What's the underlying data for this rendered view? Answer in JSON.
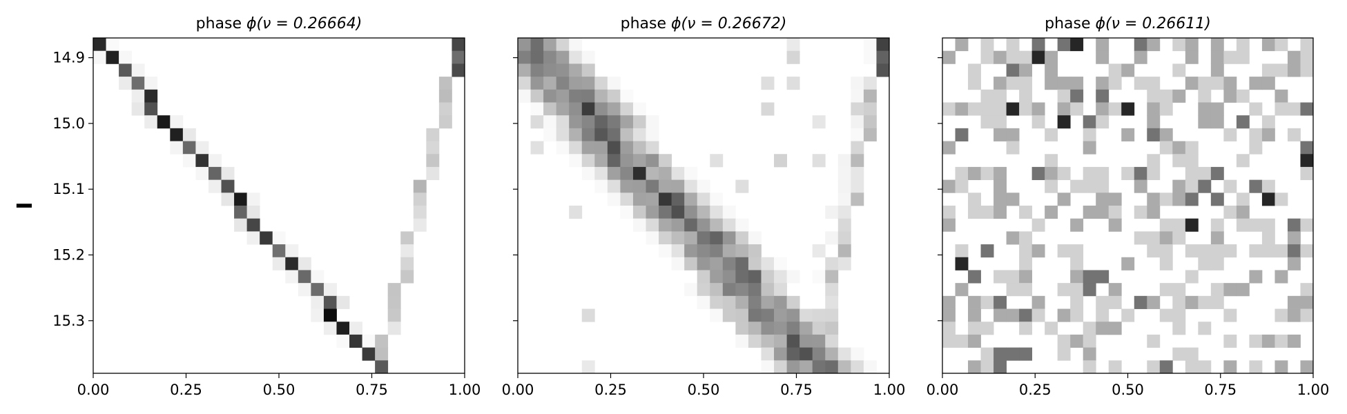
{
  "figure": {
    "ylabel": "I"
  },
  "chart_data": [
    {
      "type": "heatmap",
      "title_prefix": "phase ",
      "title_math": "ϕ(ν = 0.26664)",
      "colormap": "greys",
      "xlim": [
        0.0,
        1.0
      ],
      "ylim": [
        15.38,
        14.87
      ],
      "y_inverted": true,
      "x_ticks": [
        "0.00",
        "0.25",
        "0.50",
        "0.75",
        "1.00"
      ],
      "x_tick_values": [
        0.0,
        0.25,
        0.5,
        0.75,
        1.0
      ],
      "y_ticks": [
        "14.9",
        "15.0",
        "15.1",
        "15.2",
        "15.3"
      ],
      "y_tick_values": [
        14.9,
        15.0,
        15.1,
        15.2,
        15.3
      ],
      "show_y_tick_labels": true,
      "grid": false,
      "bins": {
        "nx": 29,
        "ny": 26,
        "x_range": [
          0.0,
          1.0
        ],
        "y_range": [
          14.87,
          15.38
        ],
        "shape": "v_band",
        "descending_x_start": 0.0,
        "descending_x_end": 0.8,
        "ascending_x_start": 0.8,
        "ascending_x_end": 1.0,
        "band_width": 1,
        "noise_density": 0.0,
        "intensity_sample": [
          [
            0,
            0,
            0.45
          ],
          [
            1,
            1,
            0.55
          ],
          [
            3,
            2,
            0.9
          ],
          [
            5,
            3,
            0.7
          ],
          [
            7,
            4,
            0.8
          ],
          [
            9,
            5,
            0.6
          ],
          [
            11,
            6,
            0.45
          ],
          [
            14,
            8,
            0.85
          ],
          [
            17,
            10,
            0.85
          ],
          [
            20,
            12,
            0.7
          ],
          [
            22,
            13,
            0.9
          ],
          [
            25,
            15,
            0.7
          ],
          [
            27,
            17,
            0.55
          ],
          [
            28,
            19,
            0.8
          ],
          [
            29,
            21,
            0.95
          ],
          [
            30,
            23,
            0.4
          ],
          [
            28,
            25,
            0.75
          ],
          [
            24,
            26,
            0.3
          ],
          [
            16,
            27,
            0.2
          ],
          [
            8,
            28,
            0.35
          ],
          [
            0,
            28,
            0.75
          ]
        ]
      }
    },
    {
      "type": "heatmap",
      "title_prefix": "phase ",
      "title_math": "ϕ(ν = 0.26672)",
      "colormap": "greys",
      "xlim": [
        0.0,
        1.0
      ],
      "ylim": [
        15.38,
        14.87
      ],
      "y_inverted": true,
      "x_ticks": [
        "0.00",
        "0.25",
        "0.50",
        "0.75",
        "1.00"
      ],
      "x_tick_values": [
        0.0,
        0.25,
        0.5,
        0.75,
        1.0
      ],
      "y_ticks": [
        "14.9",
        "15.0",
        "15.1",
        "15.2",
        "15.3"
      ],
      "y_tick_values": [
        14.9,
        15.0,
        15.1,
        15.2,
        15.3
      ],
      "show_y_tick_labels": false,
      "grid": false,
      "bins": {
        "nx": 29,
        "ny": 26,
        "x_range": [
          0.0,
          1.0
        ],
        "y_range": [
          14.87,
          15.38
        ],
        "shape": "v_band",
        "descending_x_start": 0.0,
        "descending_x_end": 0.83,
        "ascending_x_start": 0.83,
        "ascending_x_end": 1.0,
        "band_width": 4,
        "noise_density": 0.12
      }
    },
    {
      "type": "heatmap",
      "title_prefix": "phase ",
      "title_math": "ϕ(ν = 0.26611)",
      "colormap": "greys",
      "xlim": [
        0.0,
        1.0
      ],
      "ylim": [
        15.38,
        14.87
      ],
      "y_inverted": true,
      "x_ticks": [
        "0.00",
        "0.25",
        "0.50",
        "0.75",
        "1.00"
      ],
      "x_tick_values": [
        0.0,
        0.25,
        0.5,
        0.75,
        1.0
      ],
      "y_ticks": [
        "14.9",
        "15.0",
        "15.1",
        "15.2",
        "15.3"
      ],
      "y_tick_values": [
        14.9,
        15.0,
        15.1,
        15.2,
        15.3
      ],
      "show_y_tick_labels": false,
      "grid": false,
      "bins": {
        "nx": 29,
        "ny": 26,
        "x_range": [
          0.0,
          1.0
        ],
        "y_range": [
          14.87,
          15.38
        ],
        "shape": "scattered",
        "fill_fraction": 0.45
      }
    }
  ]
}
